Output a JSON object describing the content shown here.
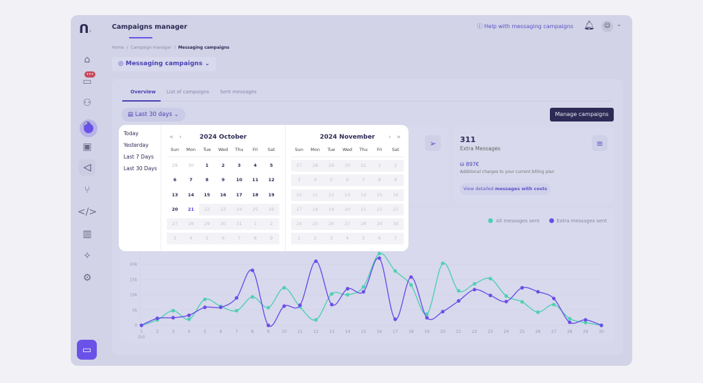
{
  "header": {
    "title": "Campaigns manager",
    "help": "Help with messaging campaigns",
    "bell_icon": "bell-icon",
    "avatar_icon": "user-icon"
  },
  "breadcrumb": {
    "home": "Home",
    "parent": "Campaign manager",
    "current": "Messaging campaigns",
    "sep": "/"
  },
  "sidebar": {
    "badge": "•••",
    "items": [
      "home",
      "conversations",
      "contacts",
      "analytics",
      "bots",
      "campaigns",
      "flows",
      "developers",
      "organization",
      "ai",
      "settings"
    ]
  },
  "selector": {
    "label": "Messaging campaigns"
  },
  "tabs": [
    {
      "label": "Overview"
    },
    {
      "label": "List of campaigns"
    },
    {
      "label": "Sent messages"
    }
  ],
  "date_button": {
    "label": "Last 30 days"
  },
  "manage_button": {
    "label": "Manage campaigns"
  },
  "extra_card": {
    "count": "311",
    "label": "Extra Messages",
    "cost": "897€",
    "cost_note": "Additional charges to your current billing plan",
    "link_prefix": "View detailed ",
    "link_bold": "messages with costs"
  },
  "presets": [
    "Today",
    "Yesterday",
    "Last 7 Days",
    "Last 30 Days"
  ],
  "calendar": {
    "dows": [
      "Sun",
      "Mon",
      "Tue",
      "Wed",
      "Thu",
      "Fri",
      "Sat"
    ],
    "months": [
      {
        "title": "2024 October",
        "weeks": [
          [
            [
              "29",
              "m"
            ],
            [
              "30",
              "m"
            ],
            [
              "1",
              "a"
            ],
            [
              "2",
              "a"
            ],
            [
              "3",
              "a"
            ],
            [
              "4",
              "a"
            ],
            [
              "5",
              "a"
            ]
          ],
          [
            [
              "6",
              "a"
            ],
            [
              "7",
              "a"
            ],
            [
              "8",
              "a"
            ],
            [
              "9",
              "a"
            ],
            [
              "10",
              "a"
            ],
            [
              "11",
              "a"
            ],
            [
              "12",
              "a"
            ]
          ],
          [
            [
              "13",
              "a"
            ],
            [
              "14",
              "a"
            ],
            [
              "15",
              "a"
            ],
            [
              "16",
              "a"
            ],
            [
              "17",
              "a"
            ],
            [
              "18",
              "a"
            ],
            [
              "19",
              "a"
            ]
          ],
          [
            [
              "20",
              "a"
            ],
            [
              "21",
              "t"
            ],
            [
              "22",
              "d"
            ],
            [
              "23",
              "d"
            ],
            [
              "24",
              "d"
            ],
            [
              "25",
              "d"
            ],
            [
              "26",
              "d"
            ]
          ],
          [
            [
              "27",
              "d"
            ],
            [
              "28",
              "d"
            ],
            [
              "29",
              "d"
            ],
            [
              "30",
              "d"
            ],
            [
              "31",
              "d"
            ],
            [
              "1",
              "d"
            ],
            [
              "2",
              "d"
            ]
          ],
          [
            [
              "3",
              "d"
            ],
            [
              "4",
              "d"
            ],
            [
              "5",
              "d"
            ],
            [
              "6",
              "d"
            ],
            [
              "7",
              "d"
            ],
            [
              "8",
              "d"
            ],
            [
              "9",
              "d"
            ]
          ]
        ]
      },
      {
        "title": "2024 November",
        "weeks": [
          [
            [
              "27",
              "d"
            ],
            [
              "28",
              "d"
            ],
            [
              "29",
              "d"
            ],
            [
              "30",
              "d"
            ],
            [
              "31",
              "d"
            ],
            [
              "1",
              "d"
            ],
            [
              "2",
              "d"
            ]
          ],
          [
            [
              "3",
              "d"
            ],
            [
              "4",
              "d"
            ],
            [
              "5",
              "d"
            ],
            [
              "6",
              "d"
            ],
            [
              "7",
              "d"
            ],
            [
              "8",
              "d"
            ],
            [
              "9",
              "d"
            ]
          ],
          [
            [
              "10",
              "d"
            ],
            [
              "11",
              "d"
            ],
            [
              "12",
              "d"
            ],
            [
              "13",
              "d"
            ],
            [
              "14",
              "d"
            ],
            [
              "15",
              "d"
            ],
            [
              "16",
              "d"
            ]
          ],
          [
            [
              "17",
              "d"
            ],
            [
              "18",
              "d"
            ],
            [
              "19",
              "d"
            ],
            [
              "20",
              "d"
            ],
            [
              "21",
              "d"
            ],
            [
              "22",
              "d"
            ],
            [
              "23",
              "d"
            ]
          ],
          [
            [
              "24",
              "d"
            ],
            [
              "25",
              "d"
            ],
            [
              "26",
              "d"
            ],
            [
              "27",
              "d"
            ],
            [
              "28",
              "d"
            ],
            [
              "29",
              "d"
            ],
            [
              "30",
              "d"
            ]
          ],
          [
            [
              "1",
              "d"
            ],
            [
              "2",
              "d"
            ],
            [
              "3",
              "d"
            ],
            [
              "4",
              "d"
            ],
            [
              "5",
              "d"
            ],
            [
              "6",
              "d"
            ],
            [
              "7",
              "d"
            ]
          ]
        ]
      }
    ]
  },
  "chart_data": {
    "type": "line",
    "x": [
      "1",
      "2",
      "3",
      "4",
      "5",
      "6",
      "7",
      "8",
      "9",
      "10",
      "11",
      "12",
      "13",
      "14",
      "15",
      "16",
      "17",
      "18",
      "19",
      "20",
      "21",
      "22",
      "23",
      "24",
      "25",
      "26",
      "27",
      "28",
      "29",
      "30"
    ],
    "x_sublabel": "Oct",
    "yticks": [
      "0",
      "5k",
      "10k",
      "15k",
      "20k"
    ],
    "ylim": [
      0,
      25000
    ],
    "legend_position": "top-right",
    "series": [
      {
        "name": "All messages sent",
        "color": "#4fcfb4",
        "values": [
          0,
          1800,
          4800,
          2000,
          8500,
          6200,
          4800,
          9300,
          5800,
          12300,
          6000,
          1800,
          10300,
          10000,
          12600,
          23500,
          17800,
          13200,
          3700,
          20300,
          11300,
          13600,
          15300,
          9600,
          7700,
          4300,
          6800,
          2200,
          900,
          0
        ]
      },
      {
        "name": "Extra messages sent",
        "color": "#6a4ee8",
        "values": [
          0,
          2300,
          2500,
          3300,
          5900,
          5900,
          9000,
          18000,
          0,
          6300,
          6600,
          21000,
          6800,
          12000,
          11000,
          22000,
          2000,
          15800,
          2500,
          4500,
          8000,
          11700,
          9800,
          7800,
          12300,
          11000,
          8800,
          1000,
          1800,
          0
        ]
      }
    ]
  }
}
